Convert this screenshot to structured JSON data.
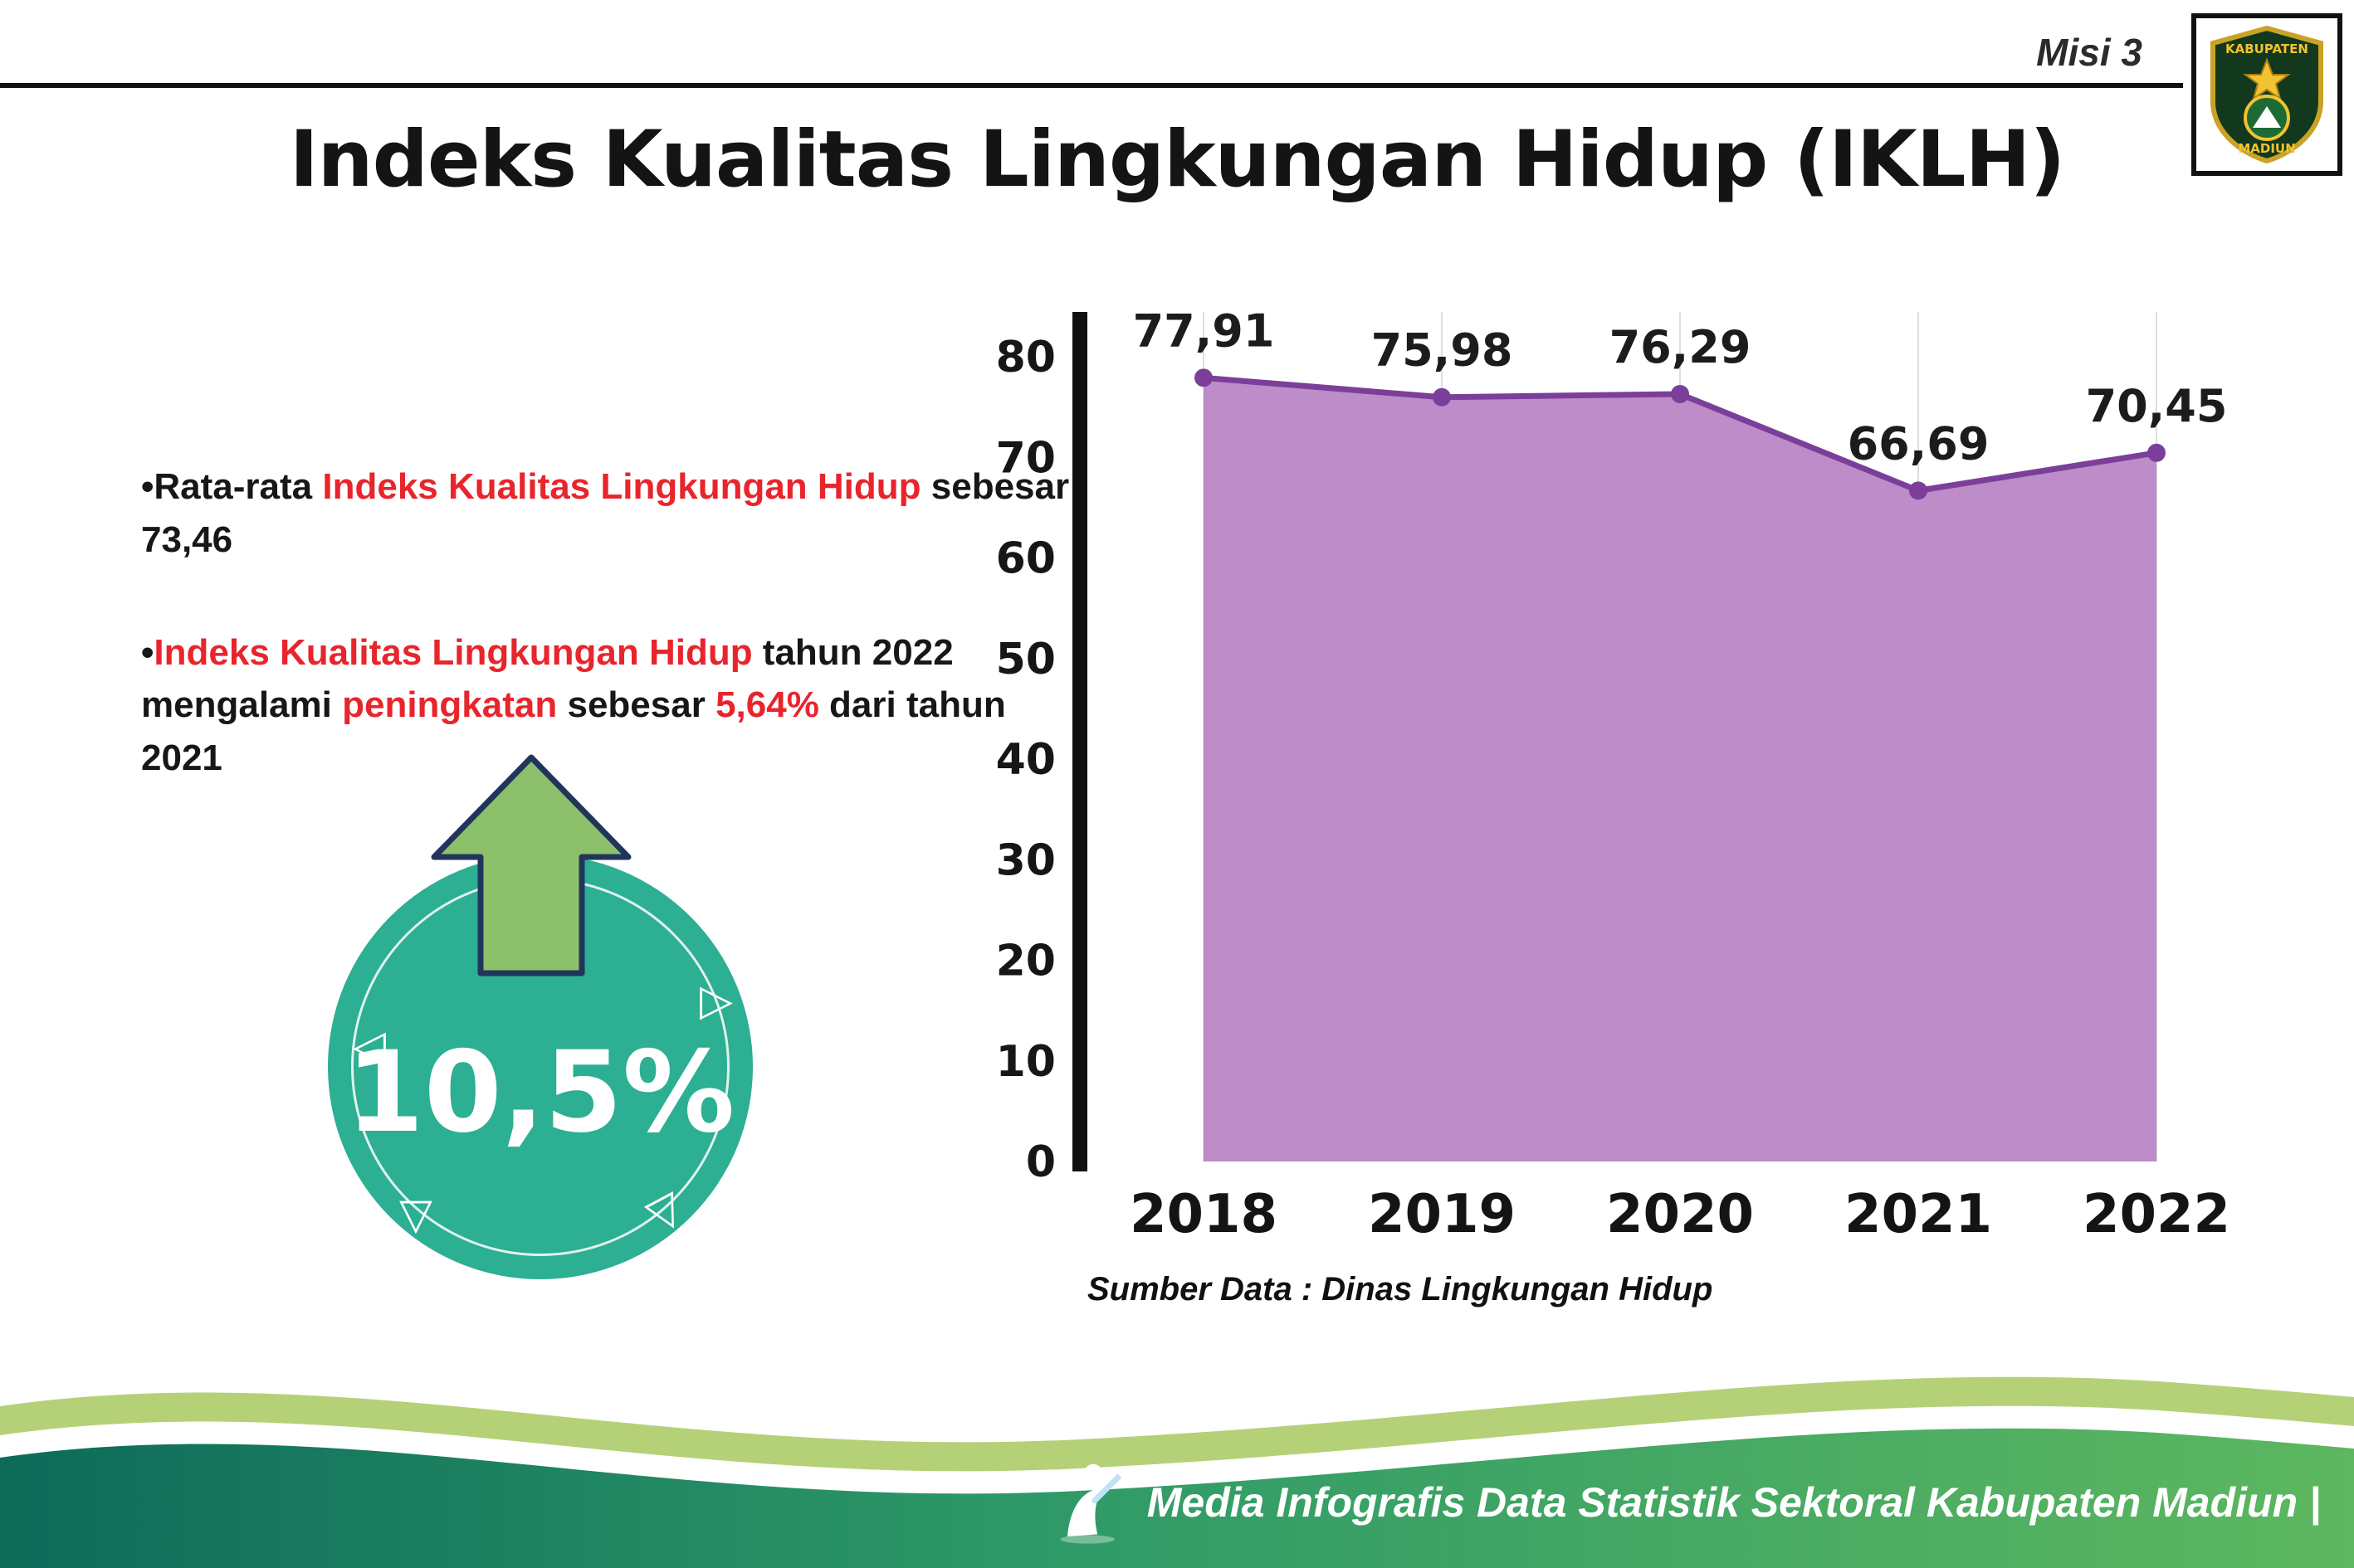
{
  "header": {
    "misi": "Misi 3",
    "title": "Indeks Kualitas Lingkungan Hidup (IKLH)",
    "logo_top": "KABUPATEN",
    "logo_bottom": "MADIUN"
  },
  "insights": {
    "bullet_char": "•",
    "highlight_color": "#e8252c",
    "b1_s1": "Rata-rata ",
    "b1_s2": "Indeks Kualitas Lingkungan Hidup",
    "b1_s3": " sebesar 73,46",
    "b2_s1": "Indeks Kualitas Lingkungan Hidup",
    "b2_s2": " tahun 2022 mengalami ",
    "b2_s3": "peningkatan",
    "b2_s4": " sebesar ",
    "b2_s5": "5,64%",
    "b2_s6": " dari tahun 2021"
  },
  "badge": {
    "value": "10,5%",
    "circle_color": "#2caf92",
    "arrow_fill": "#8dc06a",
    "arrow_outline": "#21355c",
    "triangles": [
      "◁",
      "▷",
      "▽",
      "▽"
    ]
  },
  "chart_data": {
    "type": "area",
    "categories": [
      "2018",
      "2019",
      "2020",
      "2021",
      "2022"
    ],
    "values": [
      77.91,
      75.98,
      76.29,
      66.69,
      70.45
    ],
    "point_labels": [
      "77,91",
      "75,98",
      "76,29",
      "66,69",
      "70,45"
    ],
    "title": "",
    "xlabel": "",
    "ylabel": "",
    "ylim": [
      0,
      80
    ],
    "ytick_step": 10,
    "grid": "vertical-light",
    "legend_position": "none",
    "fill_color": "#bd8cc9",
    "line_color": "#7b3f9a",
    "marker_color": "#7b3f9a",
    "axis_color": "#111111",
    "source_note": "Sumber Data : Dinas Lingkungan Hidup"
  },
  "footer": {
    "caption": "Media Infografis Data Statistik Sektoral Kabupaten Madiun |"
  }
}
